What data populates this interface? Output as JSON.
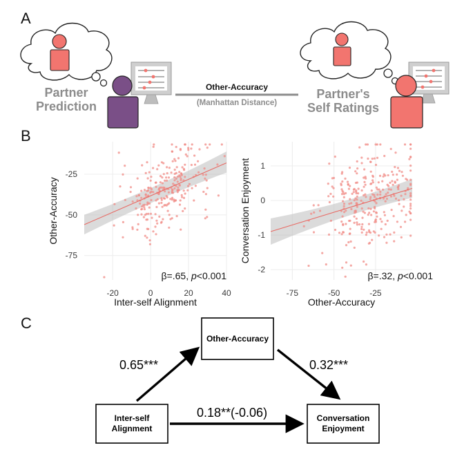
{
  "panels": {
    "a": "A",
    "b": "B",
    "c": "C"
  },
  "panel_a": {
    "left_label_line1": "Partner",
    "left_label_line2": "Prediction",
    "right_label_line1": "Partner's",
    "right_label_line2": "Self Ratings",
    "metric_title": "Other-Accuracy",
    "metric_subtitle": "(Manhattan Distance)",
    "colors": {
      "predictor": "#7a4f87",
      "partner": "#f2756f",
      "screen": "#cfcfcf"
    }
  },
  "panel_b": {
    "left_stat": "β=.65, p<0.001",
    "right_stat": "β=.32, p<0.001"
  },
  "chart_data": [
    {
      "type": "scatter",
      "xlabel": "Inter-self Alignment",
      "ylabel": "Other-Accuracy",
      "xlim": [
        -35,
        40
      ],
      "ylim": [
        -90,
        -5
      ],
      "xticks": [
        -20,
        0,
        20,
        40
      ],
      "yticks": [
        -25,
        -50,
        -75
      ],
      "fit": {
        "x": [
          -35,
          40
        ],
        "y": [
          -56,
          -18
        ],
        "ci_lo_start": -62,
        "ci_hi_start": -50,
        "ci_lo_end": -24,
        "ci_hi_end": -11,
        "ci_mid_width": 3
      },
      "point_color": "#f08b86",
      "annotation": "β=.65, p<0.001"
    },
    {
      "type": "scatter",
      "xlabel": "Other-Accuracy",
      "ylabel": "Conversation Enjoyment",
      "xlim": [
        -88,
        -3
      ],
      "ylim": [
        -2.3,
        1.7
      ],
      "xticks": [
        -75,
        -50,
        -25
      ],
      "yticks": [
        1,
        0,
        -1,
        -2
      ],
      "fit": {
        "x": [
          -88,
          -3
        ],
        "y": [
          -0.9,
          0.35
        ],
        "ci_lo_start": -1.28,
        "ci_hi_start": -0.52,
        "ci_lo_end": 0.08,
        "ci_hi_end": 0.62,
        "ci_mid_width": 0.14
      },
      "point_color": "#f08b86",
      "annotation": "β=.32, p<0.001"
    }
  ],
  "panel_c": {
    "mediator_line1": "Other-Accuracy",
    "predictor_line1": "Inter-self",
    "predictor_line2": "Alignment",
    "outcome_line1": "Conversation",
    "outcome_line2": "Enjoyment",
    "path_a": "0.65***",
    "path_b": "0.32***",
    "path_c": "0.18**(-0.06)"
  }
}
